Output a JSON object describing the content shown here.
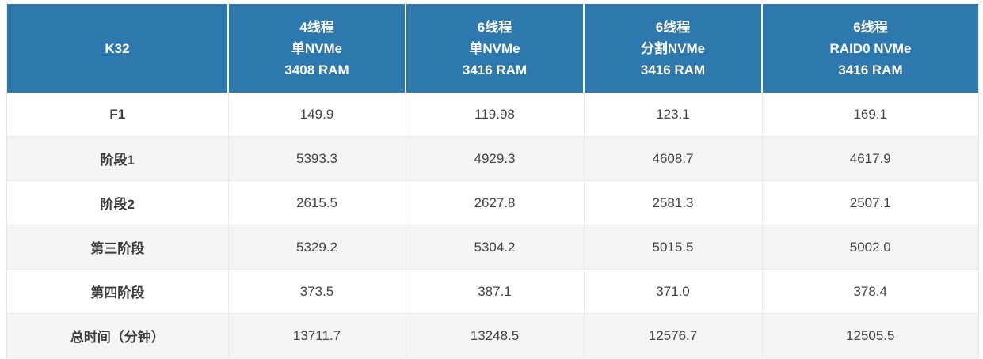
{
  "table": {
    "corner_label": "K32",
    "column_headers": [
      "4线程\n单NVMe\n3408 RAM",
      "6线程\n单NVMe\n3416 RAM",
      "6线程\n分割NVMe\n3416 RAM",
      "6线程\nRAID0 NVMe\n3416 RAM"
    ],
    "rows": [
      {
        "label": "F1",
        "values": [
          "149.9",
          "119.98",
          "123.1",
          "169.1"
        ]
      },
      {
        "label": "阶段1",
        "values": [
          "5393.3",
          "4929.3",
          "4608.7",
          "4617.9"
        ]
      },
      {
        "label": "阶段2",
        "values": [
          "2615.5",
          "2627.8",
          "2581.3",
          "2507.1"
        ]
      },
      {
        "label": "第三阶段",
        "values": [
          "5329.2",
          "5304.2",
          "5015.5",
          "5002.0"
        ]
      },
      {
        "label": "第四阶段",
        "values": [
          "373.5",
          "387.1",
          "371.0",
          "378.4"
        ]
      },
      {
        "label": "总时间（分钟）",
        "values": [
          "13711.7",
          "13248.5",
          "12576.7",
          "12505.5"
        ]
      }
    ],
    "colors": {
      "header_bg": "#2d79ad",
      "header_text": "#ffffff",
      "row_alt_bg": "#f5f5f6",
      "border": "#e9eaeb",
      "body_text": "#444444"
    }
  },
  "chart_data": {
    "type": "table",
    "title": "K32",
    "columns": [
      "4线程 单NVMe 3408 RAM",
      "6线程 单NVMe 3416 RAM",
      "6线程 分割NVMe 3416 RAM",
      "6线程 RAID0 NVMe 3416 RAM"
    ],
    "row_labels": [
      "F1",
      "阶段1",
      "阶段2",
      "第三阶段",
      "第四阶段",
      "总时间（分钟）"
    ],
    "series": [
      {
        "name": "4线程 单NVMe 3408 RAM",
        "values": [
          149.9,
          5393.3,
          2615.5,
          5329.2,
          373.5,
          13711.7
        ]
      },
      {
        "name": "6线程 单NVMe 3416 RAM",
        "values": [
          119.98,
          4929.3,
          2627.8,
          5304.2,
          387.1,
          13248.5
        ]
      },
      {
        "name": "6线程 分割NVMe 3416 RAM",
        "values": [
          123.1,
          4608.7,
          2581.3,
          5015.5,
          371.0,
          12576.7
        ]
      },
      {
        "name": "6线程 RAID0 NVMe 3416 RAM",
        "values": [
          169.1,
          4617.9,
          2507.1,
          5002.0,
          378.4,
          12505.5
        ]
      }
    ]
  }
}
